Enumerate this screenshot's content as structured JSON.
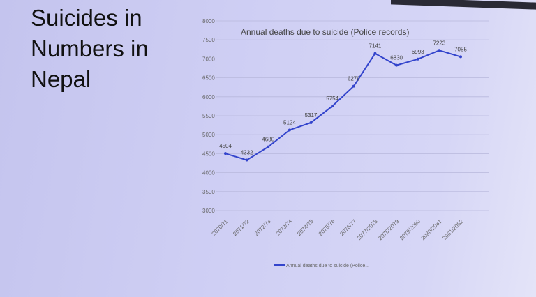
{
  "slide": {
    "title": "Suicides in\nNumbers in\nNepal"
  },
  "chart_data": {
    "type": "line",
    "title": "Annual deaths due to suicide (Police records)",
    "xlabel": "",
    "ylabel": "",
    "categories": [
      "2070/71",
      "2071/72",
      "2072/73",
      "2073/74",
      "2074/75",
      "2075/76",
      "2076/77",
      "2077/2078",
      "2078/2079",
      "2079/2080",
      "2080/2081",
      "2081/2082"
    ],
    "series": [
      {
        "name": "Annual deaths due to suicide (Police...",
        "values": [
          4504,
          4332,
          4680,
          5124,
          5317,
          5754,
          6279,
          7141,
          6830,
          6993,
          7223,
          7055
        ]
      }
    ],
    "ylim": [
      3000,
      8000
    ],
    "yticks": [
      3000,
      3500,
      4000,
      4500,
      5000,
      5500,
      6000,
      6500,
      7000,
      7500,
      8000
    ],
    "grid": true,
    "legend": "bottom",
    "data_labels": true,
    "line_color": "#3344cc"
  }
}
